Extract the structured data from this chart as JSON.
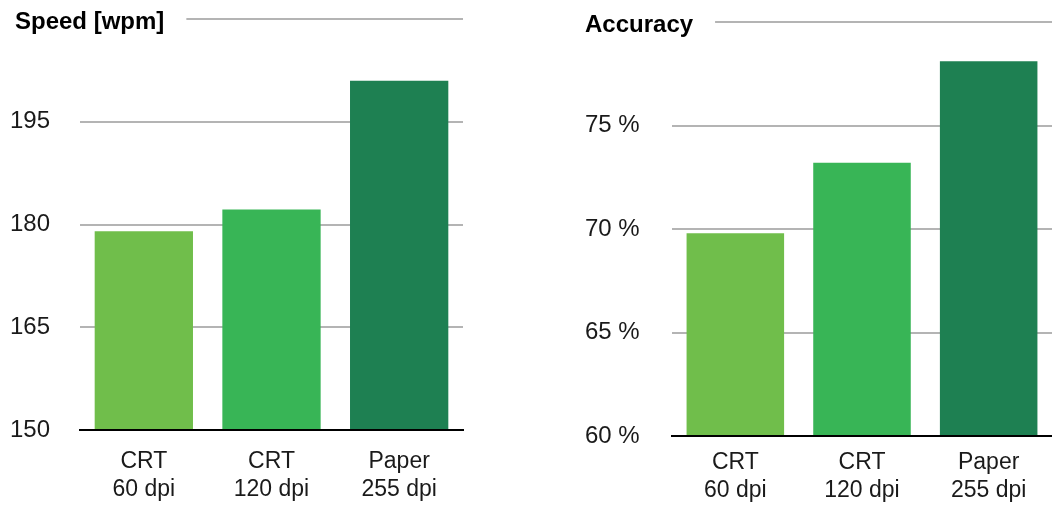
{
  "chart_data": [
    {
      "type": "bar",
      "title": "Speed [wpm]",
      "categories": [
        "CRT\n60 dpi",
        "CRT\n120 dpi",
        "Paper\n255 dpi"
      ],
      "values": [
        179,
        182.2,
        201
      ],
      "colors": [
        "#70be4b",
        "#38b556",
        "#1e8052"
      ],
      "ylim": [
        150,
        210
      ],
      "yticks": [
        150,
        165,
        180,
        195,
        {
          "value": 210,
          "label": null
        }
      ],
      "grid": "y"
    },
    {
      "type": "bar",
      "title": "Accuracy",
      "categories": [
        "CRT\n60 dpi",
        "CRT\n120 dpi",
        "Paper\n255 dpi"
      ],
      "values": [
        69.8,
        73.2,
        78.1
      ],
      "colors": [
        "#70be4b",
        "#38b556",
        "#1e8052"
      ],
      "ylim": [
        60,
        80
      ],
      "yticks": [
        {
          "value": 60,
          "label": "60 %"
        },
        {
          "value": 65,
          "label": "65 %"
        },
        {
          "value": 70,
          "label": "70 %"
        },
        {
          "value": 75,
          "label": "75 %"
        },
        {
          "value": 80,
          "label": null
        }
      ],
      "grid": "y"
    }
  ]
}
